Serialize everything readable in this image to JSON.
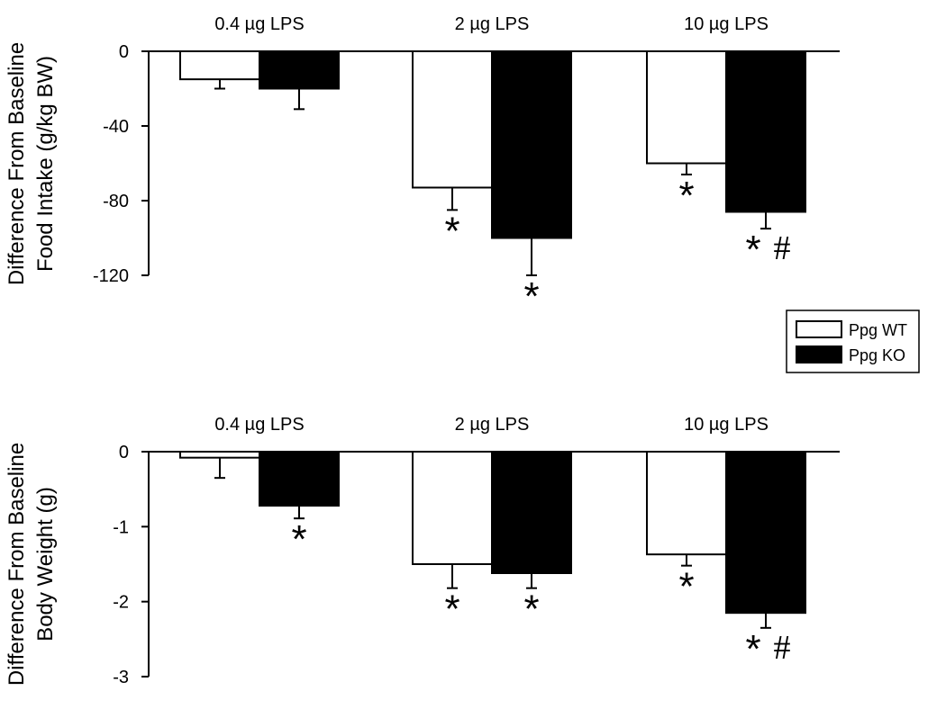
{
  "legend": {
    "entries": [
      {
        "label": "Ppg WT",
        "color": "#ffffff"
      },
      {
        "label": "Ppg KO",
        "color": "#000000"
      }
    ]
  },
  "chart_data": [
    {
      "type": "bar",
      "ylabel_lines": [
        "Difference From Baseline",
        "Food Intake (g/kg BW)"
      ],
      "categories": [
        "0.4 µg LPS",
        "2 µg LPS",
        "10 µg LPS"
      ],
      "ylim": [
        -120,
        0
      ],
      "yticks": [
        0,
        -40,
        -80,
        -120
      ],
      "ytick_labels": [
        "0",
        "-40",
        "-80",
        "-120"
      ],
      "series": [
        {
          "name": "Ppg WT",
          "color": "#ffffff",
          "values": [
            -15,
            -73,
            -60
          ],
          "errors": [
            5,
            12,
            6
          ],
          "markers": [
            "",
            "*",
            "*"
          ]
        },
        {
          "name": "Ppg KO",
          "color": "#000000",
          "values": [
            -20,
            -100,
            -86
          ],
          "errors": [
            11,
            20,
            9
          ],
          "markers": [
            "",
            "*",
            "*#"
          ]
        }
      ]
    },
    {
      "type": "bar",
      "ylabel_lines": [
        "Difference From Baseline",
        "Body Weight (g)"
      ],
      "categories": [
        "0.4 µg LPS",
        "2 µg LPS",
        "10 µg LPS"
      ],
      "ylim": [
        -3,
        0
      ],
      "yticks": [
        0,
        -1,
        -2,
        -3
      ],
      "ytick_labels": [
        "0",
        "-1",
        "-2",
        "-3"
      ],
      "series": [
        {
          "name": "Ppg WT",
          "color": "#ffffff",
          "values": [
            -0.08,
            -1.5,
            -1.37
          ],
          "errors": [
            0.27,
            0.32,
            0.15
          ],
          "markers": [
            "",
            "*",
            "*"
          ]
        },
        {
          "name": "Ppg KO",
          "color": "#000000",
          "values": [
            -0.72,
            -1.62,
            -2.15
          ],
          "errors": [
            0.17,
            0.2,
            0.2
          ],
          "markers": [
            "*",
            "*",
            "*#"
          ]
        }
      ]
    }
  ]
}
